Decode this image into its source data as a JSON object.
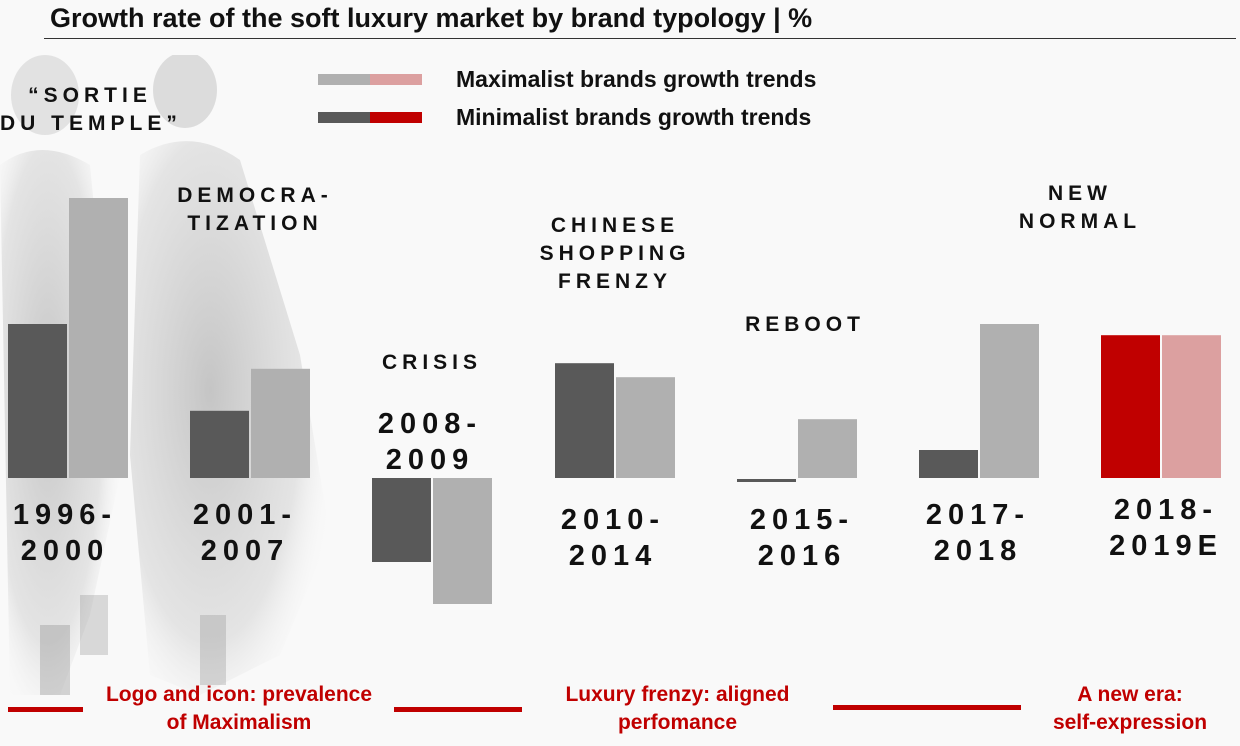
{
  "chart_data": {
    "type": "bar",
    "title": "Growth rate of the soft luxury market by brand typology | %",
    "xlabel": "",
    "ylabel": "",
    "value_units": "relative (no axis printed)",
    "grid": false,
    "legend_position": "top",
    "categories": [
      "1996-\n2000",
      "2001-\n2007",
      "2008-\n2009",
      "2010-\n2014",
      "2015-\n2016",
      "2017-\n2018",
      "2018-\n2019E"
    ],
    "phases": [
      "“SORTIE\nDU TEMPLE”",
      "DEMOCRA-\nTIZATION",
      "CRISIS",
      "CHINESE\nSHOPPING\nFRENZY",
      "REBOOT",
      "NEW\nNORMAL"
    ],
    "series": [
      {
        "name": "Minimalist brands growth trends",
        "values": [
          5.5,
          2.4,
          -3.0,
          4.1,
          -0.1,
          1.0,
          5.1
        ],
        "color": "#595959",
        "forecast_color": "#c00000"
      },
      {
        "name": "Maximalist brands growth trends",
        "values": [
          10.0,
          3.9,
          -4.5,
          3.6,
          2.1,
          5.5,
          5.1
        ],
        "color": "#b0b0b0",
        "forecast_color": "#dca0a0"
      }
    ],
    "ylim": [
      -5,
      10.5
    ]
  },
  "legend": [
    {
      "label": "Maximalist brands growth trends",
      "colors": [
        "#b0b0b0",
        "#dca0a0"
      ]
    },
    {
      "label": "Minimalist brands growth trends",
      "colors": [
        "#595959",
        "#c00000"
      ]
    }
  ],
  "eras": [
    {
      "label": "Logo and icon: prevalence\nof Maximalism"
    },
    {
      "label": "Luxury frenzy: aligned\nperfomance"
    },
    {
      "label": "A new era:\nself-expression"
    }
  ],
  "colors": {
    "accent": "#c00000",
    "text": "#111111",
    "background": "#f9f9f9"
  }
}
